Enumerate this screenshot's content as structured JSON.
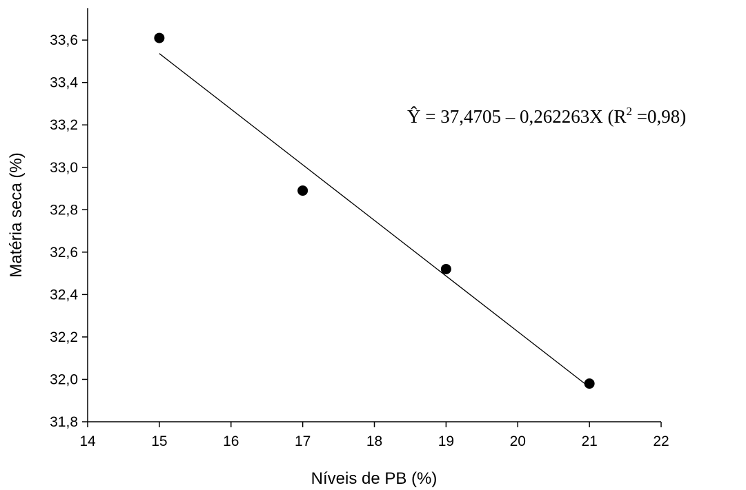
{
  "chart_data": {
    "type": "scatter",
    "xlabel": "Níveis de PB (%)",
    "ylabel": "Matéria seca (%)",
    "xlim": [
      14,
      22
    ],
    "ylim": [
      31.8,
      33.75
    ],
    "x_ticks": [
      14,
      15,
      16,
      17,
      18,
      19,
      20,
      21,
      22
    ],
    "x_tick_labels": [
      "14",
      "15",
      "16",
      "17",
      "18",
      "19",
      "20",
      "21",
      "22"
    ],
    "y_ticks": [
      31.8,
      32.0,
      32.2,
      32.4,
      32.6,
      32.8,
      33.0,
      33.2,
      33.4,
      33.6
    ],
    "y_tick_labels": [
      "31,8",
      "32,0",
      "32,2",
      "32,4",
      "32,6",
      "32,8",
      "33,0",
      "33,2",
      "33,4",
      "33,6"
    ],
    "grid": false,
    "legend": "none",
    "points": [
      {
        "x": 15,
        "y": 33.61
      },
      {
        "x": 17,
        "y": 32.89
      },
      {
        "x": 19,
        "y": 32.52
      },
      {
        "x": 21,
        "y": 31.98
      }
    ],
    "fit_line": {
      "x_start": 15,
      "x_end": 21,
      "intercept": 37.4705,
      "slope": -0.262263
    },
    "annotation": {
      "lead": "Ŷ = 37,4705 – 0,262263X (R",
      "superscript": "2",
      "tail": " =0,98)"
    },
    "marker_color": "#000000",
    "line_color": "#000000"
  }
}
